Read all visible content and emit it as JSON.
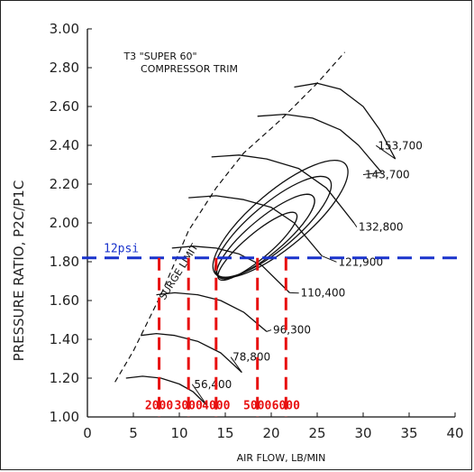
{
  "chart_data": {
    "type": "line",
    "title": "T3 \"SUPER 60\"",
    "subtitle": "COMPRESSOR TRIM",
    "xlabel": "AIR FLOW, LB/MIN",
    "ylabel": "PRESSURE RATIO,  P2C/P1C",
    "xlim": [
      0,
      40
    ],
    "ylim": [
      1.0,
      3.0
    ],
    "x_ticks": [
      0,
      5,
      10,
      15,
      20,
      25,
      30,
      35,
      40
    ],
    "y_ticks": [
      1.0,
      1.2,
      1.4,
      1.6,
      1.8,
      2.0,
      2.2,
      2.4,
      2.6,
      2.8,
      3.0
    ],
    "x_tick_labels": [
      "0",
      "5",
      "10",
      "15",
      "20",
      "25",
      "30",
      "35",
      "40"
    ],
    "y_tick_labels": [
      "1.00",
      "1.20",
      "1.40",
      "1.60",
      "1.80",
      "2.00",
      "2.20",
      "2.40",
      "2.60",
      "2.80",
      "3.00"
    ],
    "grid": false,
    "surge_limit": {
      "label": "SURGE LIMIT",
      "x": [
        3,
        5,
        8,
        11,
        14,
        17,
        21,
        25,
        28
      ],
      "y": [
        1.18,
        1.34,
        1.63,
        1.96,
        2.18,
        2.36,
        2.53,
        2.72,
        2.88
      ]
    },
    "speed_lines": [
      {
        "label": "56,400",
        "label_at": [
          11.6,
          1.15
        ],
        "x": [
          4.2,
          6,
          8,
          10,
          11.5,
          13
        ],
        "y": [
          1.2,
          1.21,
          1.2,
          1.17,
          1.13,
          1.06
        ]
      },
      {
        "label": "78,800",
        "label_at": [
          15.8,
          1.29
        ],
        "x": [
          5.8,
          7.5,
          9.5,
          12,
          14.5,
          16.8
        ],
        "y": [
          1.42,
          1.43,
          1.42,
          1.39,
          1.33,
          1.23
        ]
      },
      {
        "label": "96,300",
        "label_at": [
          20.2,
          1.43
        ],
        "x": [
          7.5,
          9.5,
          12,
          14.5,
          17,
          19.5
        ],
        "y": [
          1.63,
          1.64,
          1.63,
          1.6,
          1.54,
          1.44
        ]
      },
      {
        "label": "110,400",
        "label_at": [
          23.2,
          1.62
        ],
        "x": [
          9.2,
          11.5,
          14,
          16.5,
          19,
          22
        ],
        "y": [
          1.87,
          1.88,
          1.87,
          1.84,
          1.78,
          1.64
        ]
      },
      {
        "label": "121,900",
        "label_at": [
          27.3,
          1.78
        ],
        "x": [
          11,
          14,
          17,
          20,
          22.5,
          25.5
        ],
        "y": [
          2.13,
          2.14,
          2.12,
          2.08,
          2.0,
          1.83
        ]
      },
      {
        "label": "132,800",
        "label_at": [
          29.5,
          1.96
        ],
        "x": [
          13.5,
          16.5,
          19.5,
          23,
          26,
          29
        ],
        "y": [
          2.34,
          2.35,
          2.33,
          2.28,
          2.18,
          2.0
        ]
      },
      {
        "label": "143,700",
        "label_at": [
          30.2,
          2.23
        ],
        "x": [
          18.5,
          21.5,
          24.5,
          27.5,
          29.5,
          32
        ],
        "y": [
          2.55,
          2.56,
          2.54,
          2.48,
          2.4,
          2.26
        ]
      },
      {
        "label": "153,700",
        "label_at": [
          31.6,
          2.38
        ],
        "x": [
          22.5,
          25,
          27.5,
          30,
          31.8,
          33.5
        ],
        "y": [
          2.7,
          2.72,
          2.69,
          2.6,
          2.48,
          2.33
        ]
      }
    ],
    "efficiency_islands": [
      {
        "cx": 18.5,
        "cy": 1.88,
        "rx": 11,
        "ry": 0.1,
        "angle_deg": 40
      },
      {
        "cx": 19.4,
        "cy": 1.93,
        "rx": 13.5,
        "ry": 0.14,
        "angle_deg": 40
      },
      {
        "cx": 20.2,
        "cy": 1.98,
        "rx": 16,
        "ry": 0.18,
        "angle_deg": 40
      },
      {
        "cx": 21.0,
        "cy": 2.02,
        "rx": 18.5,
        "ry": 0.22,
        "angle_deg": 40
      }
    ],
    "boost_line": {
      "label": "12psi",
      "y": 1.82,
      "color": "#1a33cc"
    },
    "rpm_markers": {
      "color": "#e81010",
      "x": [
        7.8,
        11,
        14,
        18.5,
        21.6
      ],
      "labels": [
        "2000",
        "3000",
        "4000",
        "5000",
        "6000"
      ]
    }
  }
}
